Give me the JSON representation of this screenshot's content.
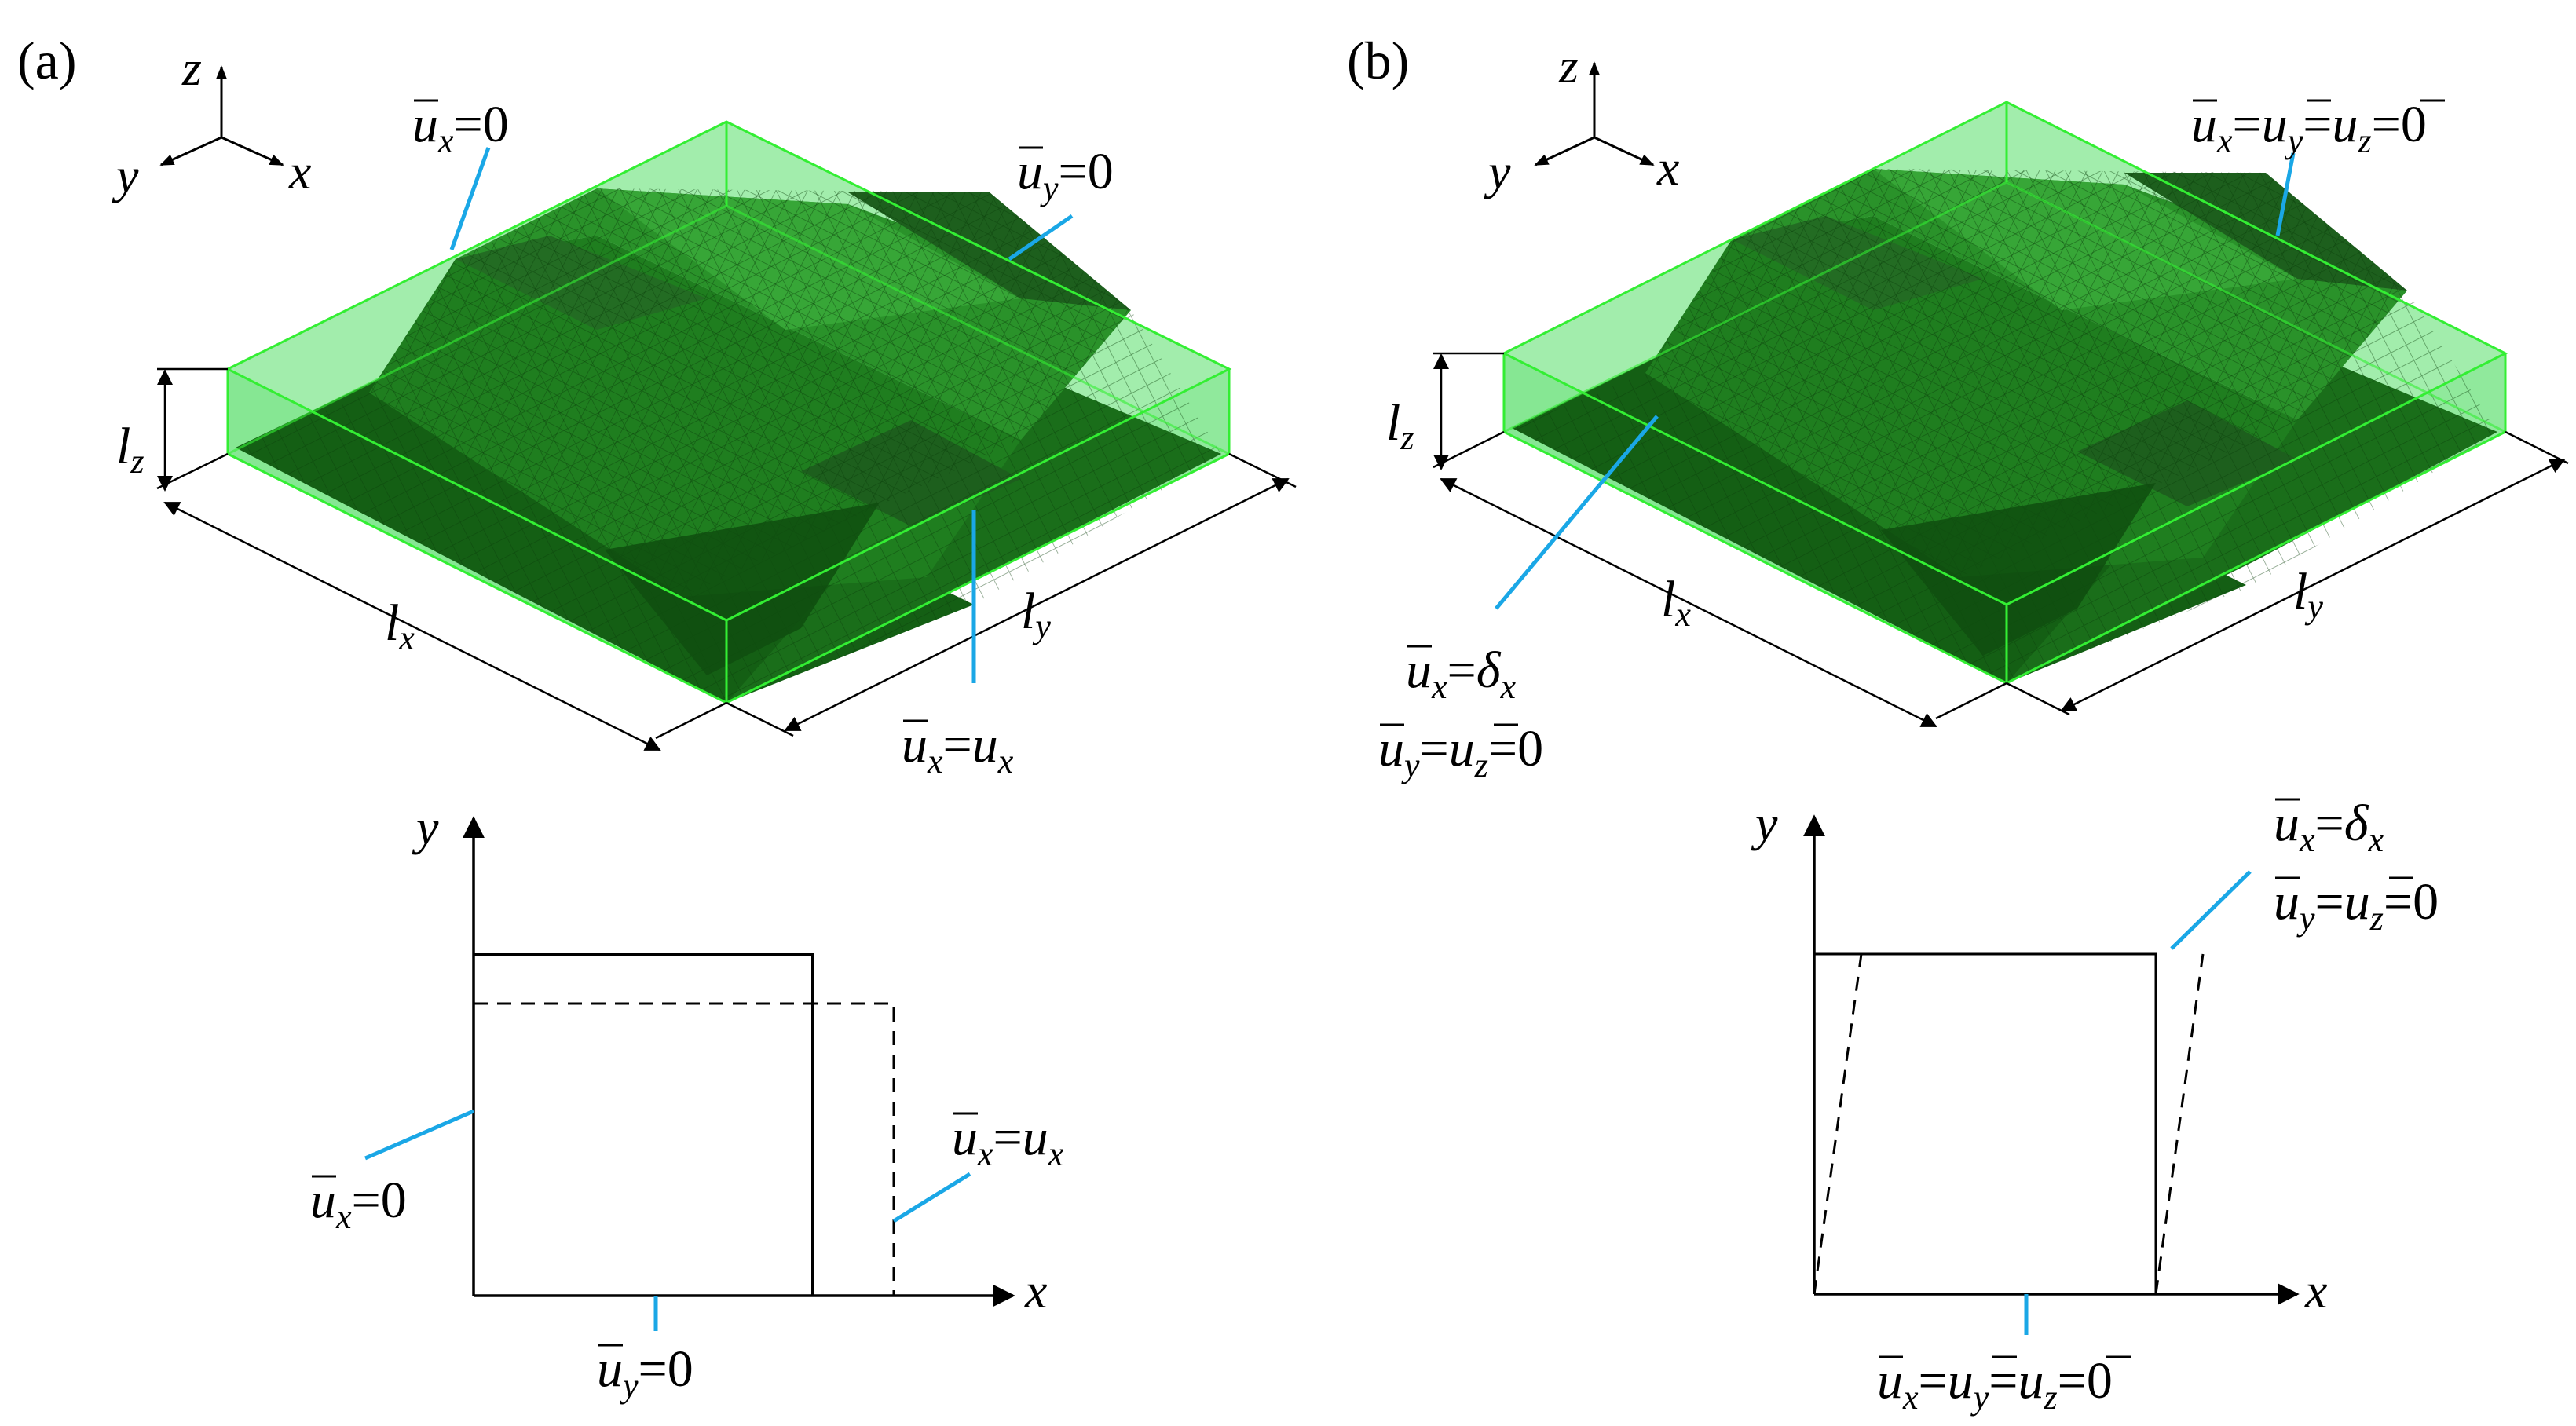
{
  "colors": {
    "box_fill": "#22d33a",
    "box_edge": "#33ee33",
    "core_dark": "#0f5a10",
    "core_mid": "#1e7a1e",
    "core_light": "#2f9a2f",
    "mesh_line": "#0b3f0b",
    "leader_line": "#1aa7e6",
    "ink": "#000000"
  },
  "panel_a": {
    "label": "(a)",
    "axes": {
      "z": "z",
      "y": "y",
      "x": "x"
    },
    "dims": {
      "lx": "l",
      "lx_sub": "x",
      "ly": "l",
      "ly_sub": "y",
      "lz": "l",
      "lz_sub": "z"
    },
    "bc_top": {
      "u": "u",
      "sub": "x",
      "eq": "=0"
    },
    "bc_right": {
      "u": "u",
      "sub": "y",
      "eq": "=0"
    },
    "bc_front": {
      "u": "u",
      "sub": "x",
      "eq": "=",
      "rhs": "u",
      "rhs_sub": "x"
    },
    "plot": {
      "x_axis": "x",
      "y_axis": "y",
      "bc_left": {
        "u": "u",
        "sub": "x",
        "eq": "=0"
      },
      "bc_bottom": {
        "u": "u",
        "sub": "y",
        "eq": "=0"
      },
      "bc_right": {
        "u": "u",
        "sub": "x",
        "eq": "=",
        "rhs": "u",
        "rhs_sub": "x"
      }
    }
  },
  "panel_b": {
    "label": "(b)",
    "axes": {
      "z": "z",
      "y": "y",
      "x": "x"
    },
    "dims": {
      "lx": "l",
      "lx_sub": "x",
      "ly": "l",
      "ly_sub": "y",
      "lz": "l",
      "lz_sub": "z"
    },
    "bc_top": {
      "u1": "u",
      "s1": "x",
      "u2": "u",
      "s2": "y",
      "u3": "u",
      "s3": "z",
      "eq": "=0"
    },
    "bc_front_1": {
      "u": "u",
      "sub": "x",
      "eq": "=",
      "delta": "δ",
      "delta_sub": "x"
    },
    "bc_front_2": {
      "u1": "u",
      "s1": "y",
      "u2": "u",
      "s2": "z",
      "eq": "=0"
    },
    "plot": {
      "x_axis": "x",
      "y_axis": "y",
      "bc_top_1": {
        "u": "u",
        "sub": "x",
        "eq": "=",
        "delta": "δ",
        "delta_sub": "x"
      },
      "bc_top_2": {
        "u1": "u",
        "s1": "y",
        "u2": "u",
        "s2": "z",
        "eq": "=0"
      },
      "bc_bottom": {
        "u1": "u",
        "s1": "x",
        "u2": "u",
        "s2": "y",
        "u3": "u",
        "s3": "z",
        "eq": "=0"
      }
    }
  }
}
